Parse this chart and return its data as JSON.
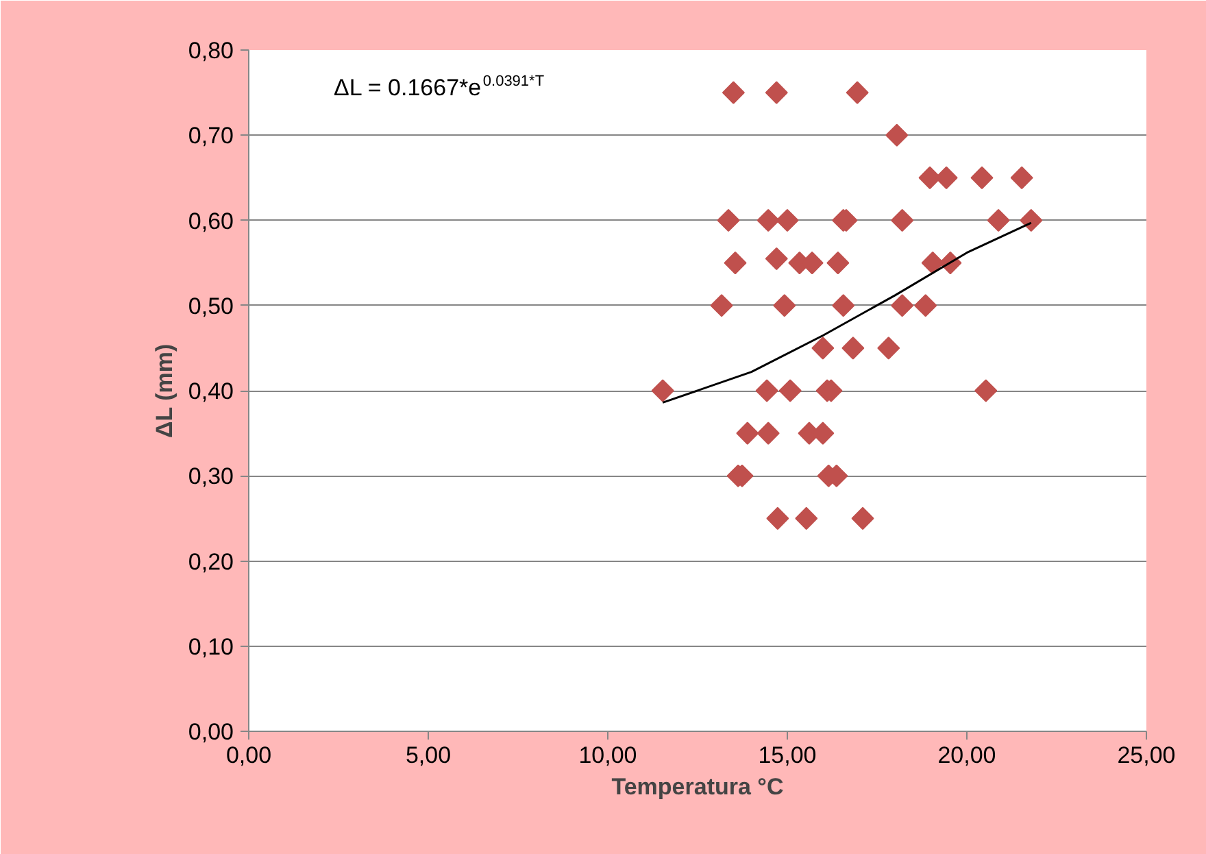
{
  "chart_data": {
    "type": "scatter",
    "xlabel": "Temperatura °C",
    "ylabel": "ΔL (mm)",
    "annotations": [
      "ΔL = 0.1667*e$^{0.0391*T}$"
    ],
    "series": [
      {
        "color": "#c0504d",
        "marker": "diamond",
        "x": [
          13.5,
          14.7,
          16.95,
          18.05,
          18.97,
          19.43,
          20.42,
          21.53,
          13.36,
          14.47,
          15.0,
          16.56,
          16.64,
          18.2,
          20.88,
          21.79,
          13.55,
          14.7,
          15.34,
          15.69,
          16.41,
          19.05,
          19.54,
          13.17,
          14.92,
          16.56,
          18.2,
          18.85,
          15.99,
          16.83,
          17.82,
          11.53,
          14.43,
          15.08,
          16.11,
          16.22,
          20.53,
          13.89,
          14.47,
          15.61,
          15.99,
          13.63,
          13.74,
          16.15,
          16.37,
          14.73,
          15.53,
          17.1
        ],
        "values": [
          0.75,
          0.75,
          0.75,
          0.7,
          0.65,
          0.65,
          0.65,
          0.65,
          0.6,
          0.6,
          0.6,
          0.6,
          0.6,
          0.6,
          0.6,
          0.6,
          0.55,
          0.555,
          0.55,
          0.55,
          0.55,
          0.55,
          0.55,
          0.5,
          0.5,
          0.5,
          0.5,
          0.5,
          0.45,
          0.45,
          0.45,
          0.4,
          0.4,
          0.4,
          0.4,
          0.4,
          0.4,
          0.35,
          0.35,
          0.35,
          0.35,
          0.3,
          0.3,
          0.3,
          0.3,
          0.25,
          0.25,
          0.25
        ]
      },
      {
        "type": "line",
        "color": "#000000",
        "marker": "none",
        "x": [
          11.53,
          14.0,
          16.0,
          18.0,
          20.0,
          21.79
        ],
        "values": [
          0.386,
          0.422,
          0.465,
          0.512,
          0.562,
          0.597
        ]
      }
    ],
    "xlim": [
      0,
      25
    ],
    "xticks": [
      {
        "value": 0,
        "label": "0,00"
      },
      {
        "value": 5,
        "label": "5,00"
      },
      {
        "value": 10,
        "label": "10,00"
      },
      {
        "value": 15,
        "label": "15,00"
      },
      {
        "value": 20,
        "label": "20,00"
      },
      {
        "value": 25,
        "label": "25,00"
      }
    ],
    "ylim": [
      0,
      0.8
    ],
    "yticks": [
      {
        "value": 0,
        "label": "0,00"
      },
      {
        "value": 0.1,
        "label": "0,10"
      },
      {
        "value": 0.2,
        "label": "0,20"
      },
      {
        "value": 0.3,
        "label": "0,30"
      },
      {
        "value": 0.4,
        "label": "0,40"
      },
      {
        "value": 0.5,
        "label": "0,50"
      },
      {
        "value": 0.6,
        "label": "0,60"
      },
      {
        "value": 0.7,
        "label": "0,70"
      },
      {
        "value": 0.8,
        "label": "0,80"
      }
    ],
    "grid": "y"
  }
}
